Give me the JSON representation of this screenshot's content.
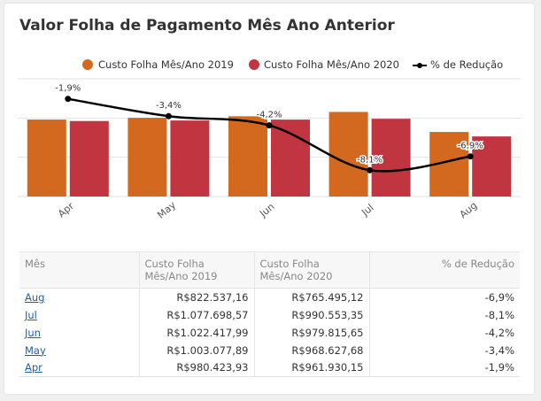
{
  "title": "Valor Folha de Pagamento Mês Ano Anterior",
  "colors": {
    "series2019": "#d2691e",
    "series2020": "#c0353f",
    "line": "#000000"
  },
  "chart_data": {
    "type": "bar",
    "categories": [
      "Apr",
      "May",
      "Jun",
      "Jul",
      "Aug"
    ],
    "series": [
      {
        "name": "Custo Folha Mês/Ano 2019",
        "values": [
          980423.93,
          1003077.89,
          1022417.99,
          1077698.57,
          822537.16
        ]
      },
      {
        "name": "Custo Folha Mês/Ano 2020",
        "values": [
          961930.15,
          968627.68,
          979815.65,
          990553.35,
          765495.12
        ]
      }
    ],
    "line_series": {
      "name": "% de Redução",
      "values": [
        -1.9,
        -3.4,
        -4.2,
        -8.1,
        -6.9
      ],
      "labels": [
        "-1,9%",
        "-3,4%",
        "-4,2%",
        "-8,1%",
        "-6,9%"
      ],
      "range": [
        -9,
        -1
      ]
    },
    "ylim": [
      0,
      1500000
    ],
    "legend_position": "top-right",
    "grid": true
  },
  "table": {
    "headers": [
      "Mês",
      "Custo Folha Mês/Ano 2019",
      "Custo Folha Mês/Ano 2020",
      "% de Redução"
    ],
    "rows": [
      {
        "month": "Aug",
        "c2019": "R$822.537,16",
        "c2020": "R$765.495,12",
        "pct": "-6,9%"
      },
      {
        "month": "Jul",
        "c2019": "R$1.077.698,57",
        "c2020": "R$990.553,35",
        "pct": "-8,1%"
      },
      {
        "month": "Jun",
        "c2019": "R$1.022.417,99",
        "c2020": "R$979.815,65",
        "pct": "-4,2%"
      },
      {
        "month": "May",
        "c2019": "R$1.003.077,89",
        "c2020": "R$968.627,68",
        "pct": "-3,4%"
      },
      {
        "month": "Apr",
        "c2019": "R$980.423,93",
        "c2020": "R$961.930,15",
        "pct": "-1,9%"
      }
    ]
  }
}
